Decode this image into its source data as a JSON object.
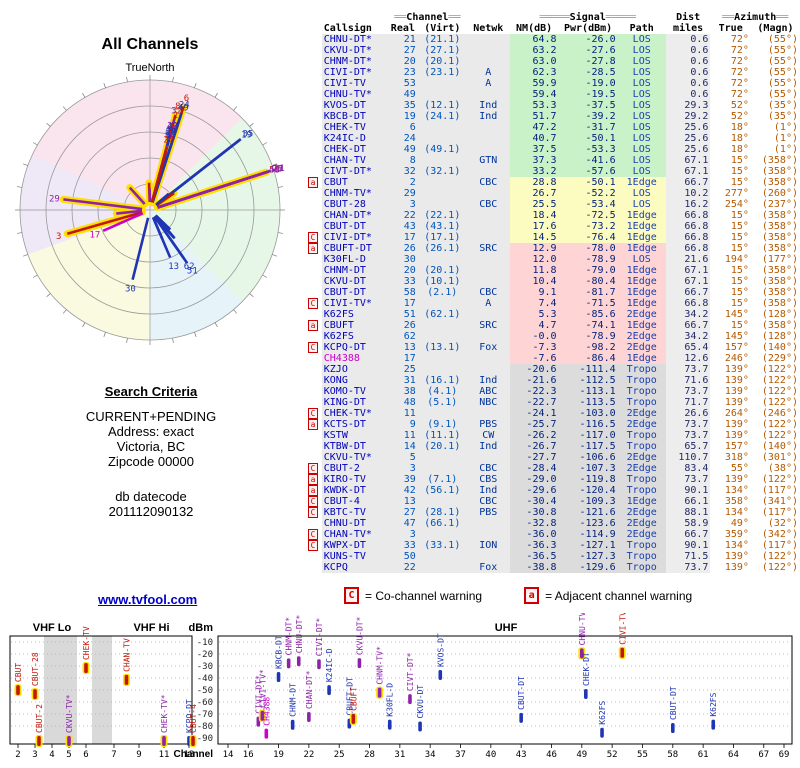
{
  "title": "All Channels",
  "radar_labels": {
    "north": "TrueNorth"
  },
  "search_criteria": {
    "heading": "Search Criteria",
    "lines": [
      "CURRENT+PENDING",
      "Address: exact",
      "Victoria, BC",
      "Zipcode 00000"
    ],
    "datecode_label": "db datecode",
    "datecode": "201112090132"
  },
  "link": {
    "label": "www.tvfool.com"
  },
  "legend": {
    "co": {
      "symbol": "C",
      "text": "= Co-channel warning"
    },
    "adj": {
      "symbol": "a",
      "text": "= Adjacent channel warning"
    }
  },
  "colors": {
    "kind": {
      "digital": "#1f35b4",
      "pending-digital": "#8d23a8",
      "pending-analog": "#8d23a8",
      "analog": "#c21807",
      "lp": "#cc00cc"
    },
    "analog_halo": "#ffdf00",
    "row_green": "#c9f2c9",
    "row_yellow": "#fcfcc0",
    "row_pink": "#ffd4d4",
    "row_gray": "#dcdcdc",
    "warning_red": "#cc0000",
    "link_blue": "#0000cc",
    "azimuth_orange": "#b35900",
    "callsign_blue": "#0000bb"
  },
  "table": {
    "groups": {
      "channel": "Channel",
      "signal": "Signal",
      "dist": "Dist",
      "azimuth": "Azimuth",
      "deco_short": "══",
      "deco_long": "═════"
    },
    "header": {
      "callsign": "Callsign",
      "real": "Real",
      "virt": "(Virt)",
      "netwk": "Netwk",
      "nm": "NM(dB)",
      "pwr": "Pwr(dBm)",
      "path": "Path",
      "miles": "miles",
      "true": "True",
      "magn": "(Magn)"
    },
    "rows": [
      {
        "cs": "CHNU-DT*",
        "real": "21",
        "virt": "(21.1)",
        "net": "",
        "nm": "64.8",
        "pwr": "-26.0",
        "path": "LOS",
        "mi": "0.6",
        "azt": "72°",
        "azm": "(55°)",
        "warn": "",
        "band": "green",
        "kind": "pending-digital"
      },
      {
        "cs": "CKVU-DT*",
        "real": "27",
        "virt": "(27.1)",
        "net": "",
        "nm": "63.2",
        "pwr": "-27.6",
        "path": "LOS",
        "mi": "0.6",
        "azt": "72°",
        "azm": "(55°)",
        "warn": "",
        "band": "green",
        "kind": "pending-digital"
      },
      {
        "cs": "CHNM-DT*",
        "real": "20",
        "virt": "(20.1)",
        "net": "",
        "nm": "63.0",
        "pwr": "-27.8",
        "path": "LOS",
        "mi": "0.6",
        "azt": "72°",
        "azm": "(55°)",
        "warn": "",
        "band": "green",
        "kind": "pending-digital"
      },
      {
        "cs": "CIVI-DT*",
        "real": "23",
        "virt": "(23.1)",
        "net": "A",
        "nm": "62.3",
        "pwr": "-28.5",
        "path": "LOS",
        "mi": "0.6",
        "azt": "72°",
        "azm": "(55°)",
        "warn": "",
        "band": "green",
        "kind": "pending-digital"
      },
      {
        "cs": "CIVI-TV",
        "real": "53",
        "virt": "",
        "net": "A",
        "nm": "59.9",
        "pwr": "-19.0",
        "path": "LOS",
        "mi": "0.6",
        "azt": "72°",
        "azm": "(55°)",
        "warn": "",
        "band": "green",
        "kind": "analog"
      },
      {
        "cs": "CHNU-TV*",
        "real": "49",
        "virt": "",
        "net": "",
        "nm": "59.4",
        "pwr": "-19.5",
        "path": "LOS",
        "mi": "0.6",
        "azt": "72°",
        "azm": "(55°)",
        "warn": "",
        "band": "green",
        "kind": "pending-analog"
      },
      {
        "cs": "KVOS-DT",
        "real": "35",
        "virt": "(12.1)",
        "net": "Ind",
        "nm": "53.3",
        "pwr": "-37.5",
        "path": "LOS",
        "mi": "29.3",
        "azt": "52°",
        "azm": "(35°)",
        "warn": "",
        "band": "green",
        "kind": "digital"
      },
      {
        "cs": "KBCB-DT",
        "real": "19",
        "virt": "(24.1)",
        "net": "Ind",
        "nm": "51.7",
        "pwr": "-39.2",
        "path": "LOS",
        "mi": "29.2",
        "azt": "52°",
        "azm": "(35°)",
        "warn": "",
        "band": "green",
        "kind": "digital"
      },
      {
        "cs": "CHEK-TV",
        "real": "6",
        "virt": "",
        "net": "",
        "nm": "47.2",
        "pwr": "-31.7",
        "path": "LOS",
        "mi": "25.6",
        "azt": "18°",
        "azm": "(1°)",
        "warn": "",
        "band": "green",
        "kind": "analog"
      },
      {
        "cs": "K24IC-D",
        "real": "24",
        "virt": "",
        "net": "",
        "nm": "40.7",
        "pwr": "-50.1",
        "path": "LOS",
        "mi": "25.6",
        "azt": "18°",
        "azm": "(1°)",
        "warn": "",
        "band": "green",
        "kind": "digital"
      },
      {
        "cs": "CHEK-DT",
        "real": "49",
        "virt": "(49.1)",
        "net": "",
        "nm": "37.5",
        "pwr": "-53.3",
        "path": "LOS",
        "mi": "25.6",
        "azt": "18°",
        "azm": "(1°)",
        "warn": "",
        "band": "green",
        "kind": "digital"
      },
      {
        "cs": "CHAN-TV",
        "real": "8",
        "virt": "",
        "net": "GTN",
        "nm": "37.3",
        "pwr": "-41.6",
        "path": "LOS",
        "mi": "67.1",
        "azt": "15°",
        "azm": "(358°)",
        "warn": "",
        "band": "green",
        "kind": "analog"
      },
      {
        "cs": "CIVT-DT*",
        "real": "32",
        "virt": "(32.1)",
        "net": "",
        "nm": "33.2",
        "pwr": "-57.6",
        "path": "LOS",
        "mi": "67.1",
        "azt": "15°",
        "azm": "(358°)",
        "warn": "",
        "band": "green",
        "kind": "pending-digital"
      },
      {
        "cs": "CBUT",
        "real": "2",
        "virt": "",
        "net": "CBC",
        "nm": "28.8",
        "pwr": "-50.1",
        "path": "1Edge",
        "mi": "66.7",
        "azt": "15°",
        "azm": "(358°)",
        "warn": "a",
        "band": "yellow",
        "kind": "analog"
      },
      {
        "cs": "CHNM-TV*",
        "real": "29",
        "virt": "",
        "net": "",
        "nm": "26.7",
        "pwr": "-52.2",
        "path": "LOS",
        "mi": "10.2",
        "azt": "277°",
        "azm": "(260°)",
        "warn": "",
        "band": "yellow",
        "kind": "pending-analog"
      },
      {
        "cs": "CBUT-28",
        "real": "3",
        "virt": "",
        "net": "CBC",
        "nm": "25.5",
        "pwr": "-53.4",
        "path": "LOS",
        "mi": "16.2",
        "azt": "254°",
        "azm": "(237°)",
        "warn": "",
        "band": "yellow",
        "kind": "analog"
      },
      {
        "cs": "CHAN-DT*",
        "real": "22",
        "virt": "(22.1)",
        "net": "",
        "nm": "18.4",
        "pwr": "-72.5",
        "path": "1Edge",
        "mi": "66.8",
        "azt": "15°",
        "azm": "(358°)",
        "warn": "",
        "band": "yellow",
        "kind": "pending-digital"
      },
      {
        "cs": "CBUT-DT",
        "real": "43",
        "virt": "(43.1)",
        "net": "",
        "nm": "17.6",
        "pwr": "-73.2",
        "path": "1Edge",
        "mi": "66.8",
        "azt": "15°",
        "azm": "(358°)",
        "warn": "",
        "band": "yellow",
        "kind": "digital"
      },
      {
        "cs": "CIVI-DT*",
        "real": "17",
        "virt": "(17.1)",
        "net": "",
        "nm": "14.5",
        "pwr": "-76.4",
        "path": "1Edge",
        "mi": "66.8",
        "azt": "15°",
        "azm": "(358°)",
        "warn": "C",
        "band": "yellow",
        "kind": "pending-digital"
      },
      {
        "cs": "CBUFT-DT",
        "real": "26",
        "virt": "(26.1)",
        "net": "SRC",
        "nm": "12.9",
        "pwr": "-78.0",
        "path": "1Edge",
        "mi": "66.8",
        "azt": "15°",
        "azm": "(358°)",
        "warn": "a",
        "band": "pink",
        "kind": "digital"
      },
      {
        "cs": "K30FL-D",
        "real": "30",
        "virt": "",
        "net": "",
        "nm": "12.0",
        "pwr": "-78.9",
        "path": "LOS",
        "mi": "21.6",
        "azt": "194°",
        "azm": "(177°)",
        "warn": "",
        "band": "pink",
        "kind": "digital"
      },
      {
        "cs": "CHNM-DT",
        "real": "20",
        "virt": "(20.1)",
        "net": "",
        "nm": "11.8",
        "pwr": "-79.0",
        "path": "1Edge",
        "mi": "67.1",
        "azt": "15°",
        "azm": "(358°)",
        "warn": "",
        "band": "pink",
        "kind": "digital"
      },
      {
        "cs": "CKVU-DT",
        "real": "33",
        "virt": "(10.1)",
        "net": "",
        "nm": "10.4",
        "pwr": "-80.4",
        "path": "1Edge",
        "mi": "67.1",
        "azt": "15°",
        "azm": "(358°)",
        "warn": "",
        "band": "pink",
        "kind": "digital"
      },
      {
        "cs": "CBUT-DT",
        "real": "58",
        "virt": "(2.1)",
        "net": "CBC",
        "nm": "9.1",
        "pwr": "-81.7",
        "path": "1Edge",
        "mi": "66.7",
        "azt": "15°",
        "azm": "(358°)",
        "warn": "",
        "band": "pink",
        "kind": "digital"
      },
      {
        "cs": "CIVI-TV*",
        "real": "17",
        "virt": "",
        "net": "A",
        "nm": "7.4",
        "pwr": "-71.5",
        "path": "1Edge",
        "mi": "66.8",
        "azt": "15°",
        "azm": "(358°)",
        "warn": "C",
        "band": "pink",
        "kind": "pending-analog"
      },
      {
        "cs": "K62FS",
        "real": "51",
        "virt": "(62.1)",
        "net": "",
        "nm": "5.3",
        "pwr": "-85.6",
        "path": "2Edge",
        "mi": "34.2",
        "azt": "145°",
        "azm": "(128°)",
        "warn": "",
        "band": "pink",
        "kind": "digital"
      },
      {
        "cs": "CBUFT",
        "real": "26",
        "virt": "",
        "net": "SRC",
        "nm": "4.7",
        "pwr": "-74.1",
        "path": "1Edge",
        "mi": "66.7",
        "azt": "15°",
        "azm": "(358°)",
        "warn": "a",
        "band": "pink",
        "kind": "analog"
      },
      {
        "cs": "K62FS",
        "real": "62",
        "virt": "",
        "net": "",
        "nm": "-0.0",
        "pwr": "-78.9",
        "path": "2Edge",
        "mi": "34.2",
        "azt": "145°",
        "azm": "(128°)",
        "warn": "",
        "band": "pink",
        "kind": "digital"
      },
      {
        "cs": "KCPQ-DT",
        "real": "13",
        "virt": "(13.1)",
        "net": "Fox",
        "nm": "-7.3",
        "pwr": "-98.2",
        "path": "2Edge",
        "mi": "65.4",
        "azt": "157°",
        "azm": "(140°)",
        "warn": "C",
        "band": "pink",
        "kind": "digital"
      },
      {
        "cs": "CH4388",
        "real": "17",
        "virt": "",
        "net": "",
        "nm": "-7.6",
        "pwr": "-86.4",
        "path": "1Edge",
        "mi": "12.6",
        "azt": "246°",
        "azm": "(229°)",
        "warn": "",
        "band": "pink",
        "kind": "lp"
      },
      {
        "cs": "KZJO",
        "real": "25",
        "virt": "",
        "net": "",
        "nm": "-20.6",
        "pwr": "-111.4",
        "path": "Tropo",
        "mi": "73.7",
        "azt": "139°",
        "azm": "(122°)",
        "warn": "",
        "band": "gray",
        "kind": "digital"
      },
      {
        "cs": "KONG",
        "real": "31",
        "virt": "(16.1)",
        "net": "Ind",
        "nm": "-21.6",
        "pwr": "-112.5",
        "path": "Tropo",
        "mi": "71.6",
        "azt": "139°",
        "azm": "(122°)",
        "warn": "",
        "band": "gray",
        "kind": "digital"
      },
      {
        "cs": "KOMO-TV",
        "real": "38",
        "virt": "(4.1)",
        "net": "ABC",
        "nm": "-22.3",
        "pwr": "-113.1",
        "path": "Tropo",
        "mi": "73.7",
        "azt": "139°",
        "azm": "(122°)",
        "warn": "",
        "band": "gray",
        "kind": "digital"
      },
      {
        "cs": "KING-DT",
        "real": "48",
        "virt": "(5.1)",
        "net": "NBC",
        "nm": "-22.7",
        "pwr": "-113.5",
        "path": "Tropo",
        "mi": "71.7",
        "azt": "139°",
        "azm": "(122°)",
        "warn": "",
        "band": "gray",
        "kind": "digital"
      },
      {
        "cs": "CHEK-TV*",
        "real": "11",
        "virt": "",
        "net": "",
        "nm": "-24.1",
        "pwr": "-103.0",
        "path": "2Edge",
        "mi": "26.6",
        "azt": "264°",
        "azm": "(246°)",
        "warn": "C",
        "band": "gray",
        "kind": "pending-analog"
      },
      {
        "cs": "KCTS-DT",
        "real": "9",
        "virt": "(9.1)",
        "net": "PBS",
        "nm": "-25.7",
        "pwr": "-116.5",
        "path": "2Edge",
        "mi": "73.7",
        "azt": "139°",
        "azm": "(122°)",
        "warn": "a",
        "band": "gray",
        "kind": "digital"
      },
      {
        "cs": "KSTW",
        "real": "11",
        "virt": "(11.1)",
        "net": "CW",
        "nm": "-26.2",
        "pwr": "-117.0",
        "path": "Tropo",
        "mi": "73.7",
        "azt": "139°",
        "azm": "(122°)",
        "warn": "",
        "band": "gray",
        "kind": "digital"
      },
      {
        "cs": "KTBW-DT",
        "real": "14",
        "virt": "(20.1)",
        "net": "Ind",
        "nm": "-26.7",
        "pwr": "-117.5",
        "path": "Tropo",
        "mi": "65.7",
        "azt": "157°",
        "azm": "(140°)",
        "warn": "",
        "band": "gray",
        "kind": "digital"
      },
      {
        "cs": "CKVU-TV*",
        "real": "5",
        "virt": "",
        "net": "",
        "nm": "-27.7",
        "pwr": "-106.6",
        "path": "2Edge",
        "mi": "110.7",
        "azt": "318°",
        "azm": "(301°)",
        "warn": "",
        "band": "gray",
        "kind": "pending-analog"
      },
      {
        "cs": "CBUT-2",
        "real": "3",
        "virt": "",
        "net": "CBC",
        "nm": "-28.4",
        "pwr": "-107.3",
        "path": "2Edge",
        "mi": "83.4",
        "azt": "55°",
        "azm": "(38°)",
        "warn": "C",
        "band": "gray",
        "kind": "analog"
      },
      {
        "cs": "KIRO-TV",
        "real": "39",
        "virt": "(7.1)",
        "net": "CBS",
        "nm": "-29.0",
        "pwr": "-119.8",
        "path": "Tropo",
        "mi": "73.7",
        "azt": "139°",
        "azm": "(122°)",
        "warn": "a",
        "band": "gray",
        "kind": "digital"
      },
      {
        "cs": "KWDK-DT",
        "real": "42",
        "virt": "(56.1)",
        "net": "Ind",
        "nm": "-29.6",
        "pwr": "-120.4",
        "path": "Tropo",
        "mi": "90.1",
        "azt": "134°",
        "azm": "(117°)",
        "warn": "a",
        "band": "gray",
        "kind": "digital"
      },
      {
        "cs": "CBUT-4",
        "real": "13",
        "virt": "",
        "net": "CBC",
        "nm": "-30.4",
        "pwr": "-109.3",
        "path": "1Edge",
        "mi": "66.1",
        "azt": "358°",
        "azm": "(341°)",
        "warn": "C",
        "band": "gray",
        "kind": "analog"
      },
      {
        "cs": "KBTC-TV",
        "real": "27",
        "virt": "(28.1)",
        "net": "PBS",
        "nm": "-30.8",
        "pwr": "-121.6",
        "path": "2Edge",
        "mi": "88.1",
        "azt": "134°",
        "azm": "(117°)",
        "warn": "C",
        "band": "gray",
        "kind": "digital"
      },
      {
        "cs": "CHNU-DT",
        "real": "47",
        "virt": "(66.1)",
        "net": "",
        "nm": "-32.8",
        "pwr": "-123.6",
        "path": "2Edge",
        "mi": "58.9",
        "azt": "49°",
        "azm": "(32°)",
        "warn": "",
        "band": "gray",
        "kind": "digital"
      },
      {
        "cs": "CHAN-TV*",
        "real": "3",
        "virt": "",
        "net": "",
        "nm": "-36.0",
        "pwr": "-114.9",
        "path": "2Edge",
        "mi": "66.7",
        "azt": "359°",
        "azm": "(342°)",
        "warn": "C",
        "band": "gray",
        "kind": "pending-analog"
      },
      {
        "cs": "KWPX-DT",
        "real": "33",
        "virt": "(33.1)",
        "net": "ION",
        "nm": "-36.3",
        "pwr": "-127.1",
        "path": "Tropo",
        "mi": "90.1",
        "azt": "134°",
        "azm": "(117°)",
        "warn": "C",
        "band": "gray",
        "kind": "digital"
      },
      {
        "cs": "KUNS-TV",
        "real": "50",
        "virt": "",
        "net": "",
        "nm": "-36.5",
        "pwr": "-127.3",
        "path": "Tropo",
        "mi": "71.5",
        "azt": "139°",
        "azm": "(122°)",
        "warn": "",
        "band": "gray",
        "kind": "digital"
      },
      {
        "cs": "KCPQ",
        "real": "22",
        "virt": "",
        "net": "Fox",
        "nm": "-38.8",
        "pwr": "-129.6",
        "path": "Tropo",
        "mi": "73.7",
        "azt": "139°",
        "azm": "(122°)",
        "warn": "",
        "band": "gray",
        "kind": "digital"
      }
    ]
  },
  "chart_data": {
    "radar": {
      "type": "radar",
      "title": "All Channels",
      "north_label": "TrueNorth",
      "rings": 5,
      "series_source": "table.rows",
      "angle_field": "azt",
      "length_field": "nm",
      "label_field": "real",
      "wedges": [
        {
          "from": 295,
          "to": 45,
          "color": "#f6d3e2"
        },
        {
          "from": 45,
          "to": 135,
          "color": "#d7f2d7"
        },
        {
          "from": 135,
          "to": 180,
          "color": "#d6ecf7"
        },
        {
          "from": 180,
          "to": 250,
          "color": "#f7f6cd"
        },
        {
          "from": 250,
          "to": 295,
          "color": "#e5d8f2"
        }
      ]
    },
    "signal_chart": {
      "type": "scatter",
      "ylabel": "dBm",
      "xlabel": "Channel",
      "ylim": [
        -90,
        -10
      ],
      "y_ticks": [
        -10,
        -20,
        -30,
        -40,
        -50,
        -60,
        -70,
        -80,
        -90
      ],
      "bands": [
        {
          "label": "VHF Lo",
          "from": 2,
          "to": 6
        },
        {
          "label": "VHF Hi",
          "from": 7,
          "to": 13
        },
        {
          "label": "UHF",
          "from": 14,
          "to": 69
        }
      ],
      "vhf_ticks": [
        2,
        3,
        4,
        5,
        6,
        7,
        9,
        11,
        13
      ],
      "uhf_ticks": [
        14,
        16,
        19,
        22,
        25,
        28,
        31,
        34,
        37,
        40,
        43,
        46,
        49,
        52,
        55,
        58,
        61,
        64,
        67,
        69
      ],
      "series_source": "table.rows",
      "x_field": "real",
      "y_field": "pwr",
      "label_field": "cs",
      "plot_floor_dbm": -110
    }
  }
}
